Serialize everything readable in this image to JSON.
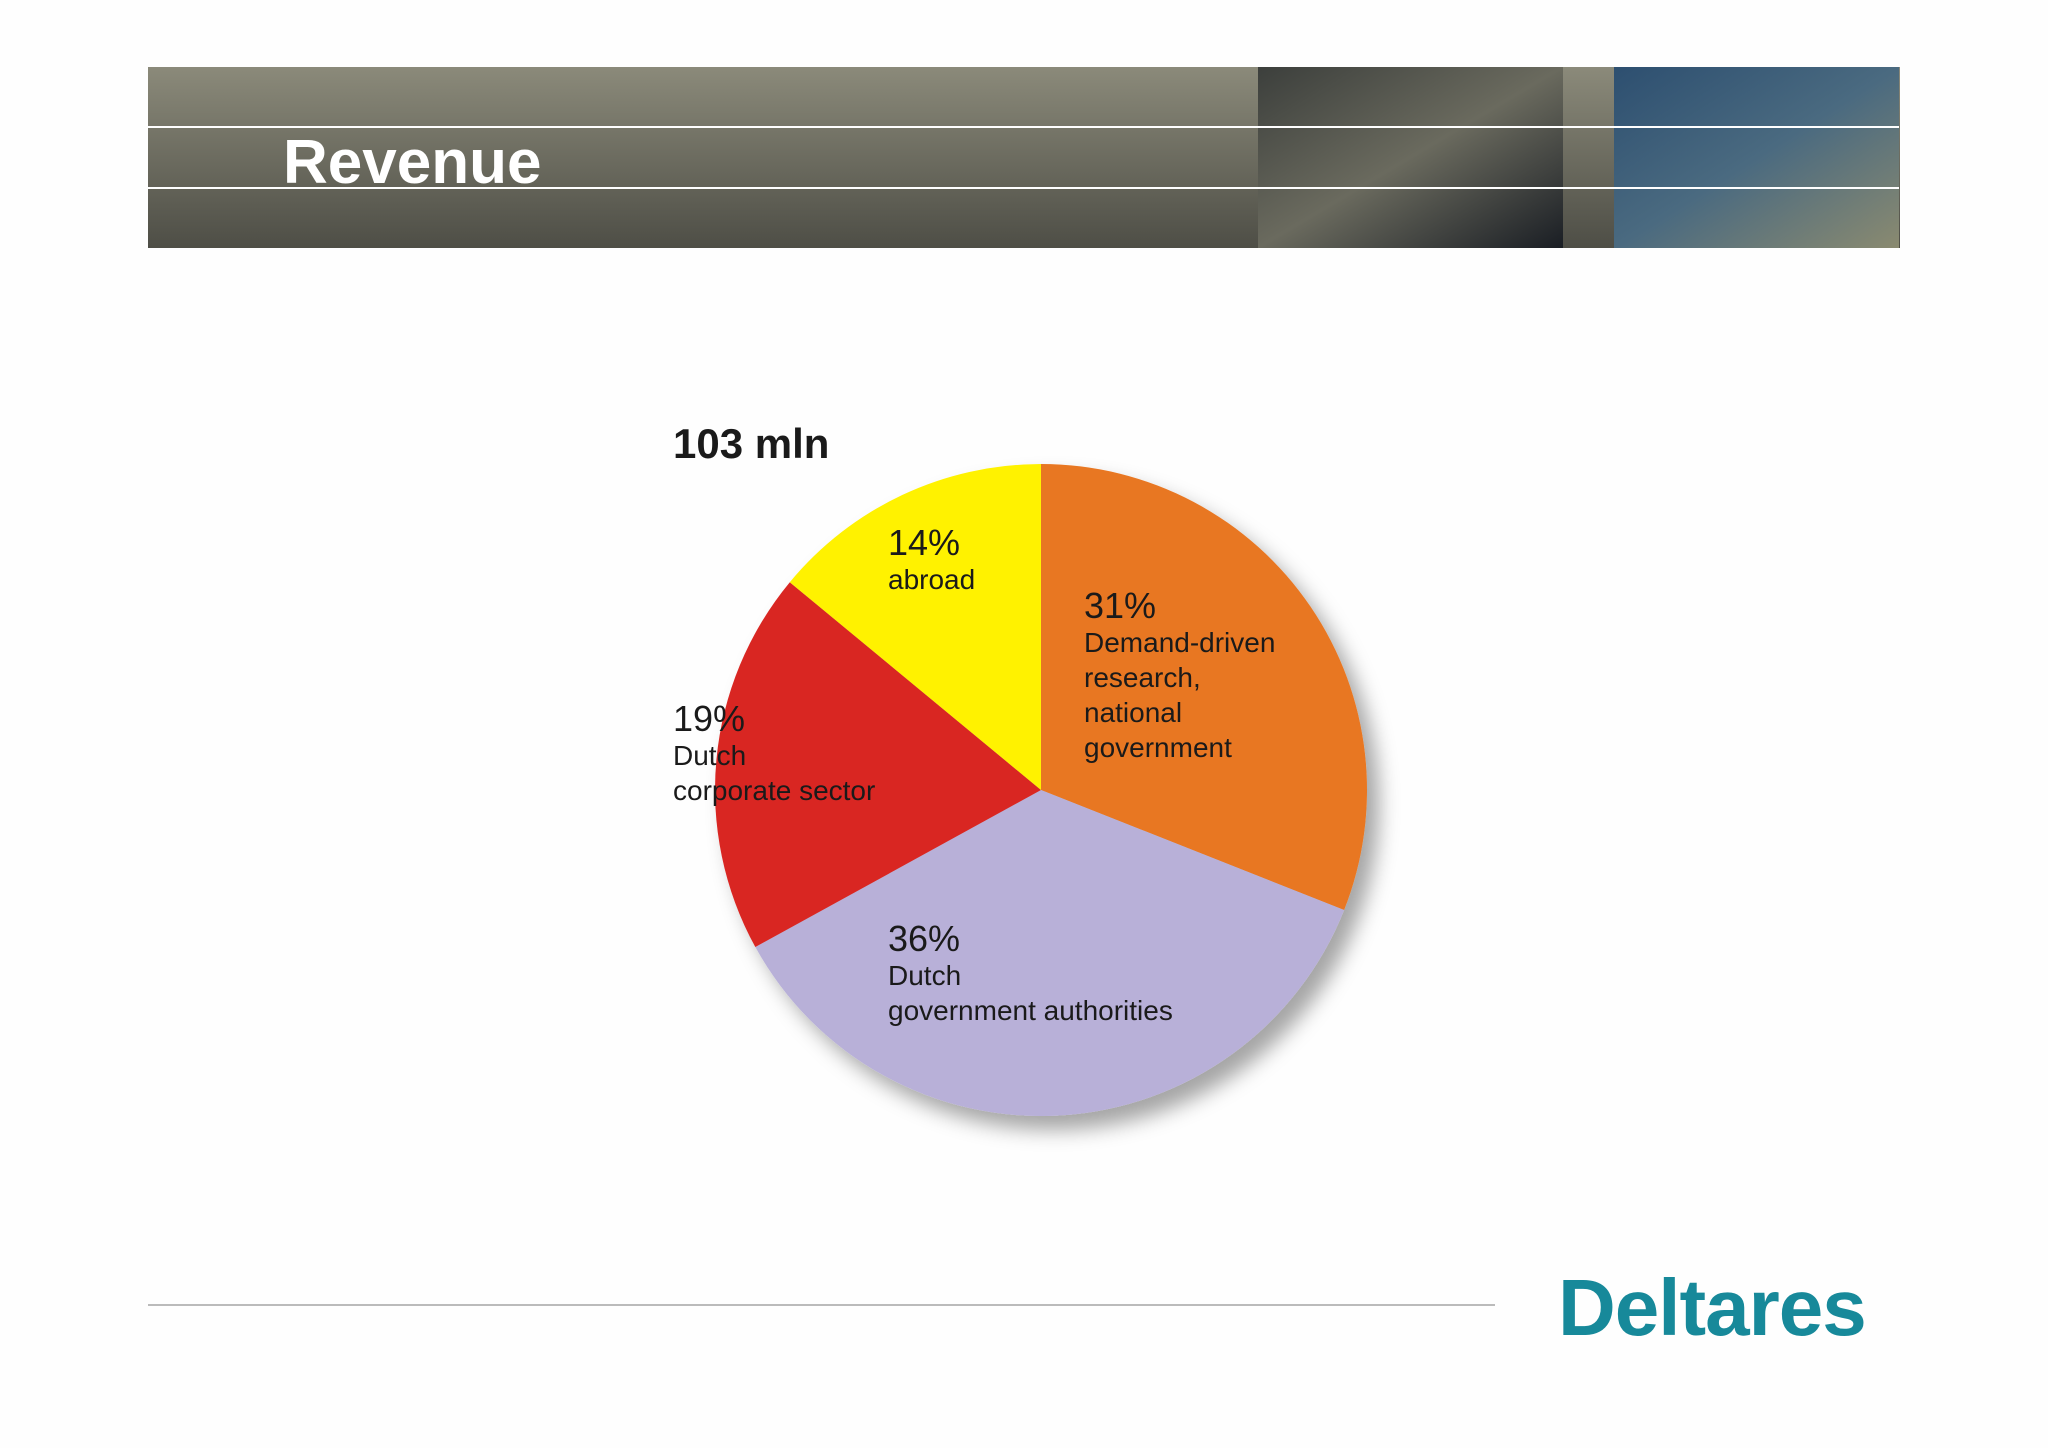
{
  "header": {
    "title": "Revenue"
  },
  "chart_data": {
    "type": "pie",
    "subtitle": "103 mln",
    "categories": [
      "Demand-driven\nresearch,\nnational\ngovernment",
      "Dutch\ngovernment authorities",
      "Dutch\ncorporate sector",
      "abroad"
    ],
    "values": [
      31,
      36,
      19,
      14
    ],
    "value_labels": [
      "31%",
      "36%",
      "19%",
      "14%"
    ],
    "colors": [
      "#e87722",
      "#b8b0d8",
      "#d92623",
      "#fff200"
    ]
  },
  "footer": {
    "logo": "Deltares"
  }
}
